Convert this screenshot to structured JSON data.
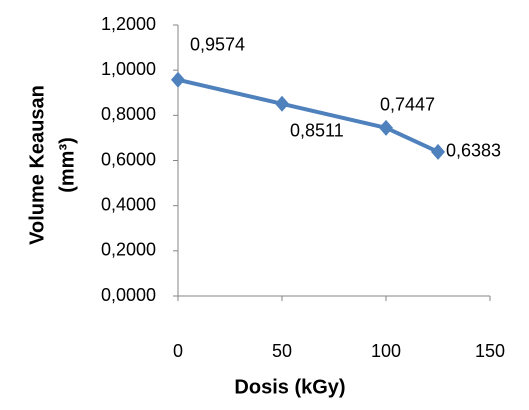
{
  "chart_data": {
    "type": "line",
    "x": [
      0,
      50,
      100,
      125
    ],
    "series": [
      {
        "name": "Volume Keausan",
        "color": "#4f81bd",
        "values": [
          0.9574,
          0.8511,
          0.7447,
          0.6383
        ],
        "value_labels": [
          "0,9574",
          "0,8511",
          "0,7447",
          "0,6383"
        ]
      }
    ],
    "xlabel": "Dosis (kGy)",
    "ylabel": [
      "Volume Keausan",
      "(mm³)"
    ],
    "xlim": [
      0,
      150
    ],
    "xticks": [
      0,
      50,
      100,
      150
    ],
    "ylim": [
      0,
      1.2
    ],
    "yticks": [
      {
        "value": 0,
        "label": "0,0000"
      },
      {
        "value": 0.2,
        "label": "0,2000"
      },
      {
        "value": 0.4,
        "label": "0,4000"
      },
      {
        "value": 0.6,
        "label": "0,6000"
      },
      {
        "value": 0.8,
        "label": "0,8000"
      },
      {
        "value": 1.0,
        "label": "1,0000"
      },
      {
        "value": 1.2,
        "label": "1,2000"
      }
    ],
    "grid": false
  }
}
